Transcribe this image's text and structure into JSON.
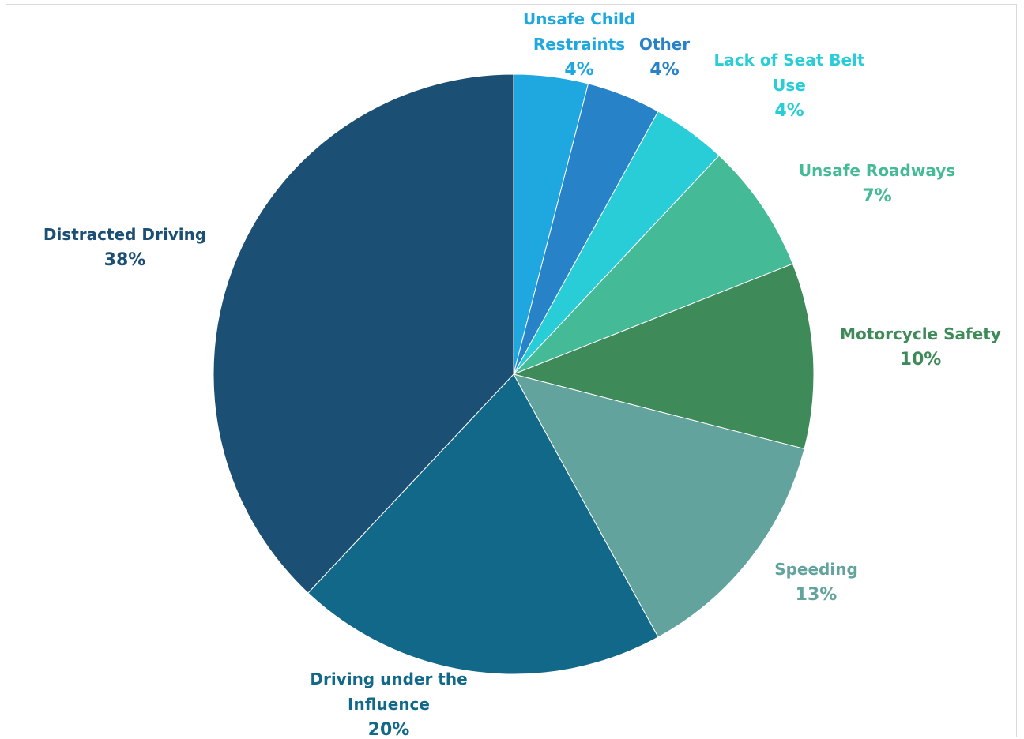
{
  "chart_data": {
    "type": "pie",
    "title": "",
    "start_angle_deg": 0,
    "direction": "clockwise",
    "slices": [
      {
        "label": [
          "Unsafe Child",
          "Restraints"
        ],
        "value": 4,
        "pct_text": "4%",
        "color": "#1FA8E0"
      },
      {
        "label": [
          "Other"
        ],
        "value": 4,
        "pct_text": "4%",
        "color": "#2882C8"
      },
      {
        "label": [
          "Lack of Seat Belt",
          "Use"
        ],
        "value": 4,
        "pct_text": "4%",
        "color": "#29CDD8"
      },
      {
        "label": [
          "Unsafe Roadways"
        ],
        "value": 7,
        "pct_text": "7%",
        "color": "#45BA96"
      },
      {
        "label": [
          "Motorcycle Safety"
        ],
        "value": 10,
        "pct_text": "10%",
        "color": "#3E8A58"
      },
      {
        "label": [
          "Speeding"
        ],
        "value": 13,
        "pct_text": "13%",
        "color": "#63A39E"
      },
      {
        "label": [
          "Driving under the",
          "Influence"
        ],
        "value": 20,
        "pct_text": "20%",
        "color": "#116888"
      },
      {
        "label": [
          "Distracted Driving"
        ],
        "value": 38,
        "pct_text": "38%",
        "color": "#1B4F74"
      }
    ]
  }
}
